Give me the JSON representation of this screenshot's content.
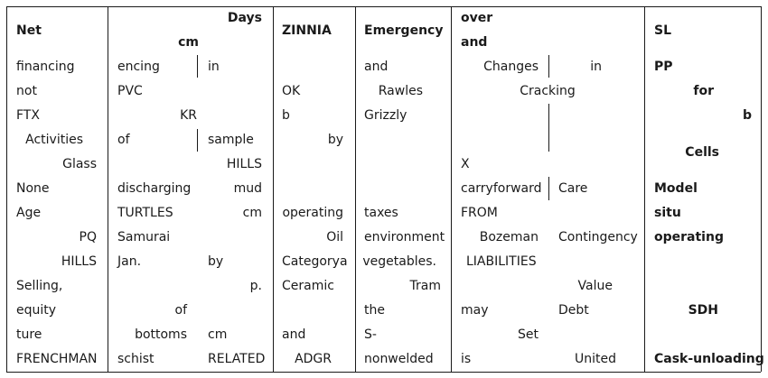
{
  "headers": [
    {
      "id": "h-net",
      "text": "Net"
    },
    {
      "id": "h-days",
      "text": "Days"
    },
    {
      "id": "h-cm",
      "text": "cm"
    },
    {
      "id": "h-zinnia",
      "text": "ZINNIA"
    },
    {
      "id": "h-emergency",
      "text": "Emergency"
    },
    {
      "id": "h-over",
      "text": "over"
    },
    {
      "id": "h-and",
      "text": "and"
    },
    {
      "id": "h-sl",
      "text": "SL"
    }
  ],
  "cells": [
    "financing",
    "encing",
    "in",
    "and",
    "Changes",
    "in",
    "PP",
    "not",
    "PVC",
    "OK",
    "Rawles",
    "Cracking",
    "for",
    "FTX",
    "KR",
    "b",
    "Grizzly",
    "b",
    "Activities",
    "of",
    "sample",
    "by",
    "Cells",
    "Glass",
    "HILLS",
    "X",
    "None",
    "discharging",
    "mud",
    "carryforward",
    "Care",
    "Model",
    "Age",
    "TURTLES",
    "cm",
    "operating",
    "taxes",
    "FROM",
    "situ",
    "PQ",
    "Samurai",
    "Oil",
    "environment",
    "Bozeman",
    "Contingency",
    "operating",
    "HILLS",
    "Jan.",
    "by",
    "Categorya",
    "vegetables.",
    "LIABILITIES",
    "Selling,",
    "p.",
    "Ceramic",
    "Tram",
    "Value",
    "equity",
    "of",
    "the",
    "may",
    "Debt",
    "SDH",
    "ture",
    "bottoms",
    "cm",
    "and",
    "S-",
    "Set",
    "FRENCHMAN",
    "schist",
    "RELATED",
    "ADGR",
    "nonwelded",
    "is",
    "United",
    "Cask-unloading"
  ]
}
